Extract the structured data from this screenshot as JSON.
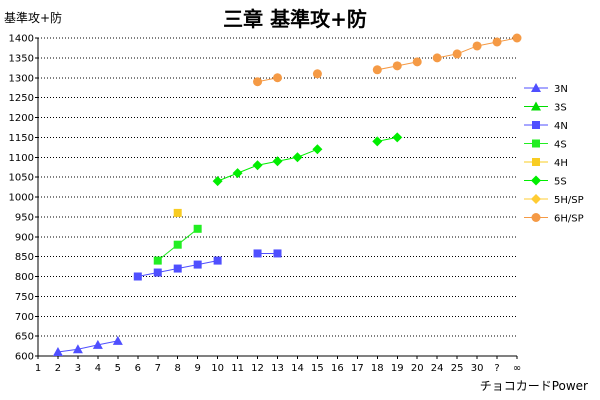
{
  "chart_data": {
    "type": "line",
    "title": "三章 基準攻+防",
    "ylabel": "基準攻+防",
    "xlabel": "チョコカードPower",
    "categories": [
      "1",
      "2",
      "3",
      "4",
      "5",
      "6",
      "7",
      "8",
      "9",
      "10",
      "11",
      "12",
      "13",
      "14",
      "15",
      "16",
      "17",
      "18",
      "19",
      "20",
      "24",
      "25",
      "30",
      "?",
      "∞"
    ],
    "ylim": [
      600,
      1400
    ],
    "ytick_step": 50,
    "grid": true,
    "legend_position": "right",
    "series": [
      {
        "name": "3N",
        "marker": "triangle",
        "color": "#4f4fff",
        "points": [
          [
            "2",
            610
          ],
          [
            "3",
            617
          ],
          [
            "4",
            628
          ],
          [
            "5",
            638
          ]
        ]
      },
      {
        "name": "3S",
        "marker": "triangle",
        "color": "#00dd00",
        "points": []
      },
      {
        "name": "4N",
        "marker": "square",
        "color": "#4f4fff",
        "points": [
          [
            "6",
            800
          ],
          [
            "7",
            810
          ],
          [
            "8",
            820
          ],
          [
            "9",
            830
          ],
          [
            "10",
            840
          ]
        ]
      },
      {
        "name": "4N",
        "marker": "square",
        "color": "#4f4fff",
        "legend": false,
        "points": [
          [
            "12",
            858
          ],
          [
            "13",
            858
          ]
        ]
      },
      {
        "name": "4S",
        "marker": "square",
        "color": "#22ee22",
        "points": [
          [
            "7",
            840
          ],
          [
            "8",
            880
          ],
          [
            "9",
            920
          ]
        ]
      },
      {
        "name": "4H",
        "marker": "square",
        "color": "#f8cc22",
        "points": [
          [
            "8",
            960
          ]
        ]
      },
      {
        "name": "5S",
        "marker": "diamond",
        "color": "#00ee00",
        "points": [
          [
            "10",
            1040
          ],
          [
            "11",
            1060
          ],
          [
            "12",
            1080
          ],
          [
            "13",
            1090
          ],
          [
            "14",
            1100
          ],
          [
            "15",
            1120
          ]
        ]
      },
      {
        "name": "5S",
        "marker": "diamond",
        "color": "#00ee00",
        "legend": false,
        "points": [
          [
            "18",
            1140
          ],
          [
            "19",
            1150
          ]
        ]
      },
      {
        "name": "5H/SP",
        "marker": "diamond",
        "color": "#ffcc33",
        "points": []
      },
      {
        "name": "6H/SP",
        "marker": "circle",
        "color": "#f59a45",
        "points": [
          [
            "12",
            1290
          ],
          [
            "13",
            1300
          ]
        ]
      },
      {
        "name": "6H/SP",
        "marker": "circle",
        "color": "#f59a45",
        "legend": false,
        "points": [
          [
            "15",
            1310
          ]
        ]
      },
      {
        "name": "6H/SP",
        "marker": "circle",
        "color": "#f59a45",
        "legend": false,
        "points": [
          [
            "18",
            1320
          ],
          [
            "19",
            1330
          ],
          [
            "20",
            1340
          ]
        ]
      },
      {
        "name": "6H/SP",
        "marker": "circle",
        "color": "#f59a45",
        "legend": false,
        "points": [
          [
            "24",
            1350
          ],
          [
            "25",
            1360
          ],
          [
            "30",
            1380
          ],
          [
            "?",
            1390
          ],
          [
            "∞",
            1400
          ]
        ]
      }
    ]
  }
}
